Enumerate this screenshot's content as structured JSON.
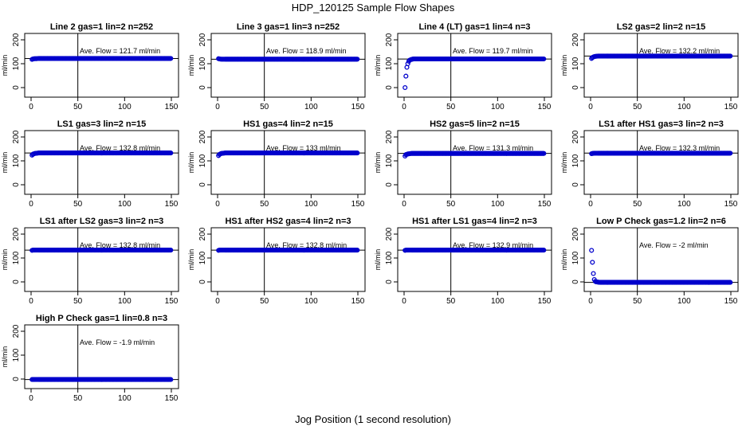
{
  "figure": {
    "title": "HDP_120125  Sample Flow Shapes",
    "xlabel": "Jog Position (1 second resolution)"
  },
  "chart_data": [
    {
      "type": "scatter",
      "title": "Line 2 gas=1 lin=2 n=252",
      "ylabel": "ml/min",
      "annotation": "Ave. Flow =  121.7  ml/min",
      "xlim": [
        0,
        150
      ],
      "ylim": [
        0,
        200
      ],
      "xticks": [
        0,
        50,
        100,
        150
      ],
      "yticks": [
        0,
        100,
        200
      ],
      "xticklabels": [
        "0",
        "50",
        "100",
        "150"
      ],
      "yticklabels": [
        "0",
        "100",
        "200"
      ],
      "vline": 50,
      "hline": 121.7,
      "series": [
        {
          "x": [
            1,
            2,
            4,
            6,
            8,
            10,
            20,
            30,
            40,
            50,
            60,
            70,
            80,
            90,
            100,
            110,
            120,
            130,
            140,
            150
          ],
          "y": [
            118,
            120,
            121,
            121,
            122,
            122,
            122,
            122,
            122,
            122,
            122,
            122,
            122,
            122,
            122,
            122,
            122,
            122,
            122,
            122
          ]
        }
      ]
    },
    {
      "type": "scatter",
      "title": "Line 3 gas=1 lin=3 n=252",
      "ylabel": "ml/min",
      "annotation": "Ave. Flow =  118.9  ml/min",
      "xlim": [
        0,
        150
      ],
      "ylim": [
        0,
        200
      ],
      "xticks": [
        0,
        50,
        100,
        150
      ],
      "yticks": [
        0,
        100,
        200
      ],
      "xticklabels": [
        "0",
        "50",
        "100",
        "150"
      ],
      "yticklabels": [
        "0",
        "100",
        "200"
      ],
      "vline": 50,
      "hline": 118.9,
      "series": [
        {
          "x": [
            1,
            2,
            4,
            6,
            8,
            10,
            20,
            30,
            40,
            50,
            60,
            70,
            80,
            90,
            100,
            110,
            120,
            130,
            140,
            150
          ],
          "y": [
            121,
            120,
            119,
            119,
            119,
            119,
            119,
            119,
            119,
            119,
            119,
            119,
            119,
            119,
            119,
            119,
            119,
            119,
            119,
            119
          ]
        }
      ]
    },
    {
      "type": "scatter",
      "title": "Line 4 (LT) gas=1 lin=4 n=3",
      "ylabel": "ml/min",
      "annotation": "Ave. Flow =  119.7  ml/min",
      "xlim": [
        0,
        150
      ],
      "ylim": [
        0,
        200
      ],
      "xticks": [
        0,
        50,
        100,
        150
      ],
      "yticks": [
        0,
        100,
        200
      ],
      "xticklabels": [
        "0",
        "50",
        "100",
        "150"
      ],
      "yticklabels": [
        "0",
        "100",
        "200"
      ],
      "vline": 50,
      "hline": 119.7,
      "series": [
        {
          "x": [
            1,
            2,
            3,
            4,
            5,
            6,
            8,
            10,
            20,
            30,
            40,
            50,
            60,
            70,
            80,
            90,
            100,
            110,
            120,
            130,
            140,
            150
          ],
          "y": [
            0,
            48,
            85,
            100,
            110,
            115,
            118,
            120,
            120,
            120,
            120,
            120,
            120,
            120,
            120,
            120,
            120,
            120,
            120,
            120,
            120,
            120
          ]
        }
      ]
    },
    {
      "type": "scatter",
      "title": "LS2 gas=2 lin=2 n=15",
      "ylabel": "ml/min",
      "annotation": "Ave. Flow =  132.2  ml/min",
      "xlim": [
        0,
        150
      ],
      "ylim": [
        0,
        200
      ],
      "xticks": [
        0,
        50,
        100,
        150
      ],
      "yticks": [
        0,
        100,
        200
      ],
      "xticklabels": [
        "0",
        "50",
        "100",
        "150"
      ],
      "yticklabels": [
        "0",
        "100",
        "200"
      ],
      "vline": 50,
      "hline": 132.2,
      "series": [
        {
          "x": [
            1,
            2,
            4,
            6,
            8,
            10,
            20,
            30,
            40,
            50,
            60,
            70,
            80,
            90,
            100,
            110,
            120,
            130,
            140,
            150
          ],
          "y": [
            122,
            126,
            130,
            131,
            132,
            132,
            132,
            132,
            132,
            132,
            132,
            132,
            132,
            132,
            132,
            132,
            132,
            132,
            132,
            132
          ]
        }
      ]
    },
    {
      "type": "scatter",
      "title": "LS1 gas=3 lin=2 n=15",
      "ylabel": "ml/min",
      "annotation": "Ave. Flow =  132.8  ml/min",
      "xlim": [
        0,
        150
      ],
      "ylim": [
        0,
        200
      ],
      "xticks": [
        0,
        50,
        100,
        150
      ],
      "yticks": [
        0,
        100,
        200
      ],
      "xticklabels": [
        "0",
        "50",
        "100",
        "150"
      ],
      "yticklabels": [
        "0",
        "100",
        "200"
      ],
      "vline": 50,
      "hline": 132.8,
      "series": [
        {
          "x": [
            1,
            2,
            4,
            6,
            8,
            10,
            20,
            30,
            40,
            50,
            60,
            70,
            80,
            90,
            100,
            110,
            120,
            130,
            140,
            150
          ],
          "y": [
            124,
            128,
            131,
            132,
            133,
            133,
            133,
            133,
            133,
            133,
            133,
            133,
            133,
            133,
            133,
            133,
            133,
            133,
            133,
            133
          ]
        }
      ]
    },
    {
      "type": "scatter",
      "title": "HS1 gas=4 lin=2 n=15",
      "ylabel": "ml/min",
      "annotation": "Ave. Flow =  133  ml/min",
      "xlim": [
        0,
        150
      ],
      "ylim": [
        0,
        200
      ],
      "xticks": [
        0,
        50,
        100,
        150
      ],
      "yticks": [
        0,
        100,
        200
      ],
      "xticklabels": [
        "0",
        "50",
        "100",
        "150"
      ],
      "yticklabels": [
        "0",
        "100",
        "200"
      ],
      "vline": 50,
      "hline": 133,
      "series": [
        {
          "x": [
            1,
            2,
            4,
            6,
            8,
            10,
            20,
            30,
            40,
            50,
            60,
            70,
            80,
            90,
            100,
            110,
            120,
            130,
            140,
            150
          ],
          "y": [
            122,
            127,
            131,
            132,
            133,
            133,
            133,
            133,
            133,
            133,
            133,
            133,
            133,
            133,
            133,
            133,
            133,
            133,
            133,
            133
          ]
        }
      ]
    },
    {
      "type": "scatter",
      "title": "HS2 gas=5 lin=2 n=15",
      "ylabel": "ml/min",
      "annotation": "Ave. Flow =  131.3  ml/min",
      "xlim": [
        0,
        150
      ],
      "ylim": [
        0,
        200
      ],
      "xticks": [
        0,
        50,
        100,
        150
      ],
      "yticks": [
        0,
        100,
        200
      ],
      "xticklabels": [
        "0",
        "50",
        "100",
        "150"
      ],
      "yticklabels": [
        "0",
        "100",
        "200"
      ],
      "vline": 50,
      "hline": 131.3,
      "series": [
        {
          "x": [
            1,
            2,
            4,
            6,
            8,
            10,
            20,
            30,
            40,
            50,
            60,
            70,
            80,
            90,
            100,
            110,
            120,
            130,
            140,
            150
          ],
          "y": [
            120,
            126,
            129,
            130,
            131,
            131,
            131,
            131,
            131,
            131,
            131,
            131,
            131,
            131,
            131,
            131,
            131,
            131,
            131,
            131
          ]
        }
      ]
    },
    {
      "type": "scatter",
      "title": "LS1 after HS1 gas=3 lin=2 n=3",
      "ylabel": "ml/min",
      "annotation": "Ave. Flow =  132.3  ml/min",
      "xlim": [
        0,
        150
      ],
      "ylim": [
        0,
        200
      ],
      "xticks": [
        0,
        50,
        100,
        150
      ],
      "yticks": [
        0,
        100,
        200
      ],
      "xticklabels": [
        "0",
        "50",
        "100",
        "150"
      ],
      "yticklabels": [
        "0",
        "100",
        "200"
      ],
      "vline": 50,
      "hline": 132.3,
      "series": [
        {
          "x": [
            1,
            2,
            4,
            6,
            8,
            10,
            20,
            30,
            40,
            50,
            60,
            70,
            80,
            90,
            100,
            110,
            120,
            130,
            140,
            150
          ],
          "y": [
            130,
            131,
            132,
            132,
            132,
            132,
            132,
            132,
            132,
            132,
            132,
            132,
            132,
            132,
            132,
            132,
            132,
            132,
            132,
            132
          ]
        }
      ]
    },
    {
      "type": "scatter",
      "title": "LS1 after LS2 gas=3 lin=2 n=3",
      "ylabel": "ml/min",
      "annotation": "Ave. Flow =  132.8  ml/min",
      "xlim": [
        0,
        150
      ],
      "ylim": [
        0,
        200
      ],
      "xticks": [
        0,
        50,
        100,
        150
      ],
      "yticks": [
        0,
        100,
        200
      ],
      "xticklabels": [
        "0",
        "50",
        "100",
        "150"
      ],
      "yticklabels": [
        "0",
        "100",
        "200"
      ],
      "vline": 50,
      "hline": 132.8,
      "series": [
        {
          "x": [
            1,
            2,
            4,
            6,
            8,
            10,
            20,
            30,
            40,
            50,
            60,
            70,
            80,
            90,
            100,
            110,
            120,
            130,
            140,
            150
          ],
          "y": [
            132,
            133,
            133,
            133,
            133,
            133,
            133,
            133,
            133,
            133,
            133,
            133,
            133,
            133,
            133,
            133,
            133,
            133,
            133,
            133
          ]
        }
      ]
    },
    {
      "type": "scatter",
      "title": "HS1 after HS2 gas=4 lin=2 n=3",
      "ylabel": "ml/min",
      "annotation": "Ave. Flow =  132.8  ml/min",
      "xlim": [
        0,
        150
      ],
      "ylim": [
        0,
        200
      ],
      "xticks": [
        0,
        50,
        100,
        150
      ],
      "yticks": [
        0,
        100,
        200
      ],
      "xticklabels": [
        "0",
        "50",
        "100",
        "150"
      ],
      "yticklabels": [
        "0",
        "100",
        "200"
      ],
      "vline": 50,
      "hline": 132.8,
      "series": [
        {
          "x": [
            1,
            2,
            4,
            6,
            8,
            10,
            20,
            30,
            40,
            50,
            60,
            70,
            80,
            90,
            100,
            110,
            120,
            130,
            140,
            150
          ],
          "y": [
            132,
            133,
            133,
            133,
            133,
            133,
            133,
            133,
            133,
            133,
            133,
            133,
            133,
            133,
            133,
            133,
            133,
            133,
            133,
            133
          ]
        }
      ]
    },
    {
      "type": "scatter",
      "title": "HS1 after LS1 gas=4 lin=2 n=3",
      "ylabel": "ml/min",
      "annotation": "Ave. Flow =  132.9  ml/min",
      "xlim": [
        0,
        150
      ],
      "ylim": [
        0,
        200
      ],
      "xticks": [
        0,
        50,
        100,
        150
      ],
      "yticks": [
        0,
        100,
        200
      ],
      "xticklabels": [
        "0",
        "50",
        "100",
        "150"
      ],
      "yticklabels": [
        "0",
        "100",
        "200"
      ],
      "vline": 50,
      "hline": 132.9,
      "series": [
        {
          "x": [
            1,
            2,
            4,
            6,
            8,
            10,
            20,
            30,
            40,
            50,
            60,
            70,
            80,
            90,
            100,
            110,
            120,
            130,
            140,
            150
          ],
          "y": [
            132,
            133,
            133,
            133,
            133,
            133,
            133,
            133,
            133,
            133,
            133,
            133,
            133,
            133,
            133,
            133,
            133,
            133,
            133,
            133
          ]
        }
      ]
    },
    {
      "type": "scatter",
      "title": "Low P Check gas=1.2 lin=2 n=6",
      "ylabel": "ml/min",
      "annotation": "Ave. Flow =  -2  ml/min",
      "xlim": [
        0,
        150
      ],
      "ylim": [
        0,
        200
      ],
      "xticks": [
        0,
        50,
        100,
        150
      ],
      "yticks": [
        0,
        100,
        200
      ],
      "xticklabels": [
        "0",
        "50",
        "100",
        "150"
      ],
      "yticklabels": [
        "0",
        "100",
        "200"
      ],
      "vline": 50,
      "hline": -2,
      "series": [
        {
          "x": [
            1,
            2,
            3,
            4,
            5,
            6,
            8,
            10,
            20,
            30,
            40,
            50,
            60,
            70,
            80,
            90,
            100,
            110,
            120,
            130,
            140,
            150
          ],
          "y": [
            132,
            82,
            35,
            10,
            2,
            0,
            -1,
            -2,
            -2,
            -2,
            -2,
            -2,
            -2,
            -2,
            -2,
            -2,
            -2,
            -2,
            -2,
            -2,
            -2,
            -2
          ]
        }
      ]
    },
    {
      "type": "scatter",
      "title": "High P Check gas=1 lin=0.8 n=3",
      "ylabel": "ml/min",
      "annotation": "Ave. Flow =  -1.9  ml/min",
      "xlim": [
        0,
        150
      ],
      "ylim": [
        0,
        200
      ],
      "xticks": [
        0,
        50,
        100,
        150
      ],
      "yticks": [
        0,
        100,
        200
      ],
      "xticklabels": [
        "0",
        "50",
        "100",
        "150"
      ],
      "yticklabels": [
        "0",
        "100",
        "200"
      ],
      "vline": 50,
      "hline": -1.9,
      "series": [
        {
          "x": [
            1,
            2,
            4,
            6,
            8,
            10,
            20,
            30,
            40,
            50,
            60,
            70,
            80,
            90,
            100,
            110,
            120,
            130,
            140,
            150
          ],
          "y": [
            -2,
            -2,
            -2,
            -2,
            -2,
            -2,
            -2,
            -2,
            -2,
            -2,
            -2,
            -2,
            -2,
            -2,
            -2,
            -2,
            -2,
            -2,
            -2,
            -2
          ]
        }
      ]
    }
  ],
  "colors": {
    "points": "#0000cc",
    "axis": "#000000"
  }
}
